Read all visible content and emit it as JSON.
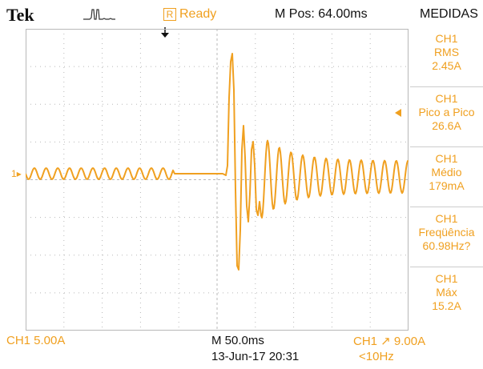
{
  "header": {
    "brand": "Tek",
    "acquisition_icon": "pulse-acquisition-icon",
    "status_badge": "R",
    "status": "Ready",
    "m_pos": "M Pos: 64.00ms",
    "menu_title": "MEDIDAS"
  },
  "measurements": [
    {
      "channel": "CH1",
      "label": "RMS",
      "value": "2.45A"
    },
    {
      "channel": "CH1",
      "label": "Pico a Pico",
      "value": "26.6A"
    },
    {
      "channel": "CH1",
      "label": "Médio",
      "value": "179mA"
    },
    {
      "channel": "CH1",
      "label": "Freqüência",
      "value": "60.98Hz?"
    },
    {
      "channel": "CH1",
      "label": "Máx",
      "value": "15.2A"
    }
  ],
  "waveform": {
    "channel_marker": "1",
    "trace_color": "#f0a020",
    "grid_color": "#b8b8b8",
    "vertical_divisions": 8,
    "horizontal_divisions": 10
  },
  "footer": {
    "ch1_scale": "CH1  5.00A",
    "timebase": "M 50.0ms",
    "datetime": "13-Jun-17 20:31",
    "trigger": "CH1 ↗ 9.00A",
    "trigger_freq": "<10Hz"
  },
  "colors": {
    "accent": "#f0a020",
    "text": "#111111",
    "grid": "#b8b8b8"
  }
}
